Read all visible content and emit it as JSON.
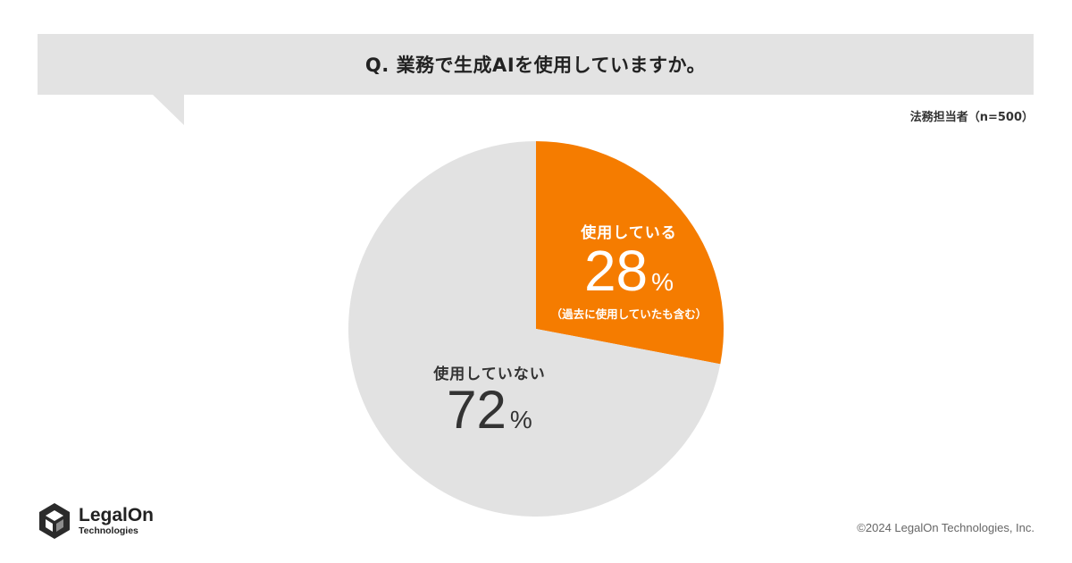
{
  "question": "Q. 業務で生成AIを使用していますか。",
  "sample_note": "法務担当者（n=500）",
  "chart_data": {
    "type": "pie",
    "slices": [
      {
        "label": "使用している",
        "value": 28,
        "unit": "%",
        "note": "（過去に使用していたも含む）",
        "color": "#f57c00"
      },
      {
        "label": "使用していない",
        "value": 72,
        "unit": "%",
        "note": "",
        "color": "#e2e2e2"
      }
    ]
  },
  "colors": {
    "accent": "#f57c00",
    "neutral": "#e2e2e2",
    "banner": "#e3e3e3"
  },
  "logo": {
    "name": "LegalOn",
    "sub": "Technologies",
    "icon": "legalon-hexagon-icon"
  },
  "copyright": "©2024 LegalOn Technologies, Inc."
}
